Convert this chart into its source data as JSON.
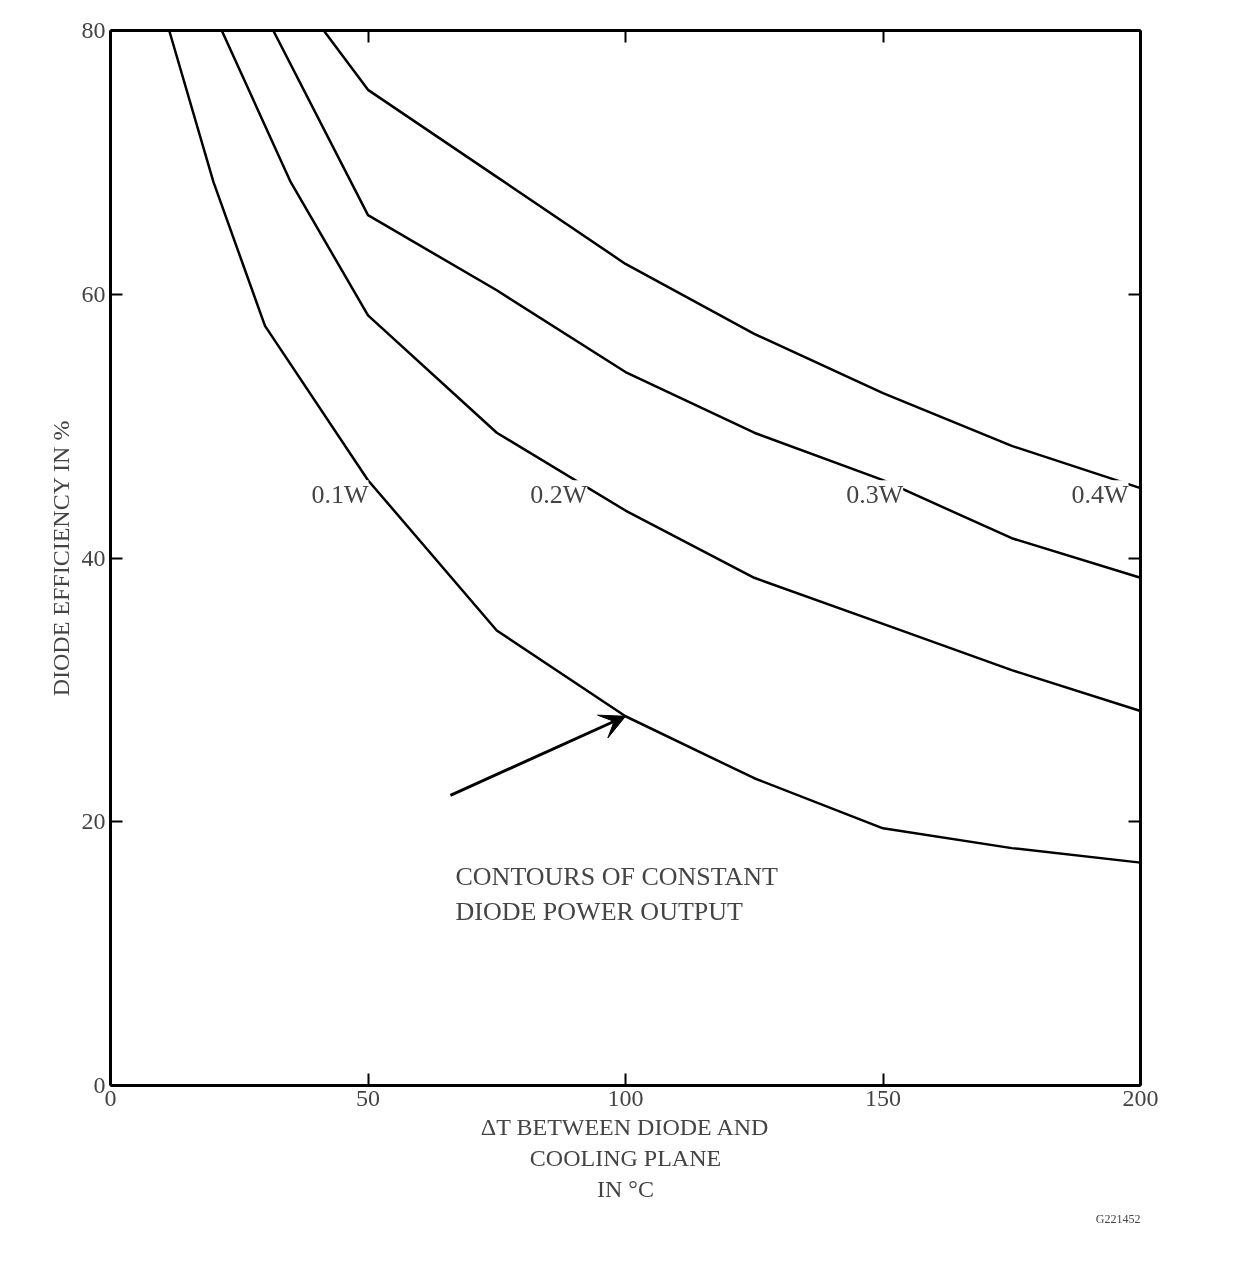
{
  "chart_data": {
    "type": "line",
    "xlabel": "ΔT BETWEEN DIODE AND\nCOOLING PLANE\nIN °C",
    "ylabel": "DIODE EFFICIENCY IN %",
    "xlim": [
      0,
      200
    ],
    "ylim": [
      0,
      80
    ],
    "xticks": [
      0,
      50,
      100,
      150,
      200
    ],
    "yticks": [
      0,
      20,
      40,
      60,
      80
    ],
    "grid": false,
    "legend": false,
    "marker": "none",
    "line_style": "solid",
    "series": [
      {
        "name": "0.1W",
        "color": "#000000",
        "x": [
          11.4,
          20,
          30,
          50,
          75,
          100,
          125,
          150,
          175,
          200
        ],
        "values": [
          80,
          68.5,
          57.6,
          45.9,
          34.5,
          28,
          23.3,
          19.5,
          18,
          16.9
        ]
      },
      {
        "name": "0.2W",
        "color": "#000000",
        "x": [
          21.6,
          35,
          50,
          75,
          100,
          125,
          150,
          175,
          200
        ],
        "values": [
          80,
          68.5,
          58.4,
          49.5,
          43.6,
          38.5,
          35,
          31.5,
          28.4
        ]
      },
      {
        "name": "0.3W",
        "color": "#000000",
        "x": [
          31.6,
          50,
          75,
          100,
          125,
          150,
          175,
          200
        ],
        "values": [
          80,
          66,
          60.3,
          54.1,
          49.5,
          45.9,
          41.5,
          38.5
        ]
      },
      {
        "name": "0.4W",
        "color": "#000000",
        "x": [
          41.4,
          50,
          75,
          100,
          125,
          150,
          175,
          200
        ],
        "values": [
          80,
          75.5,
          68.9,
          62.3,
          57,
          52.5,
          48.5,
          45.3
        ]
      }
    ],
    "annotations": [
      "CONTOURS OF CONSTANT\nDIODE POWER OUTPUT",
      "G221452"
    ]
  }
}
